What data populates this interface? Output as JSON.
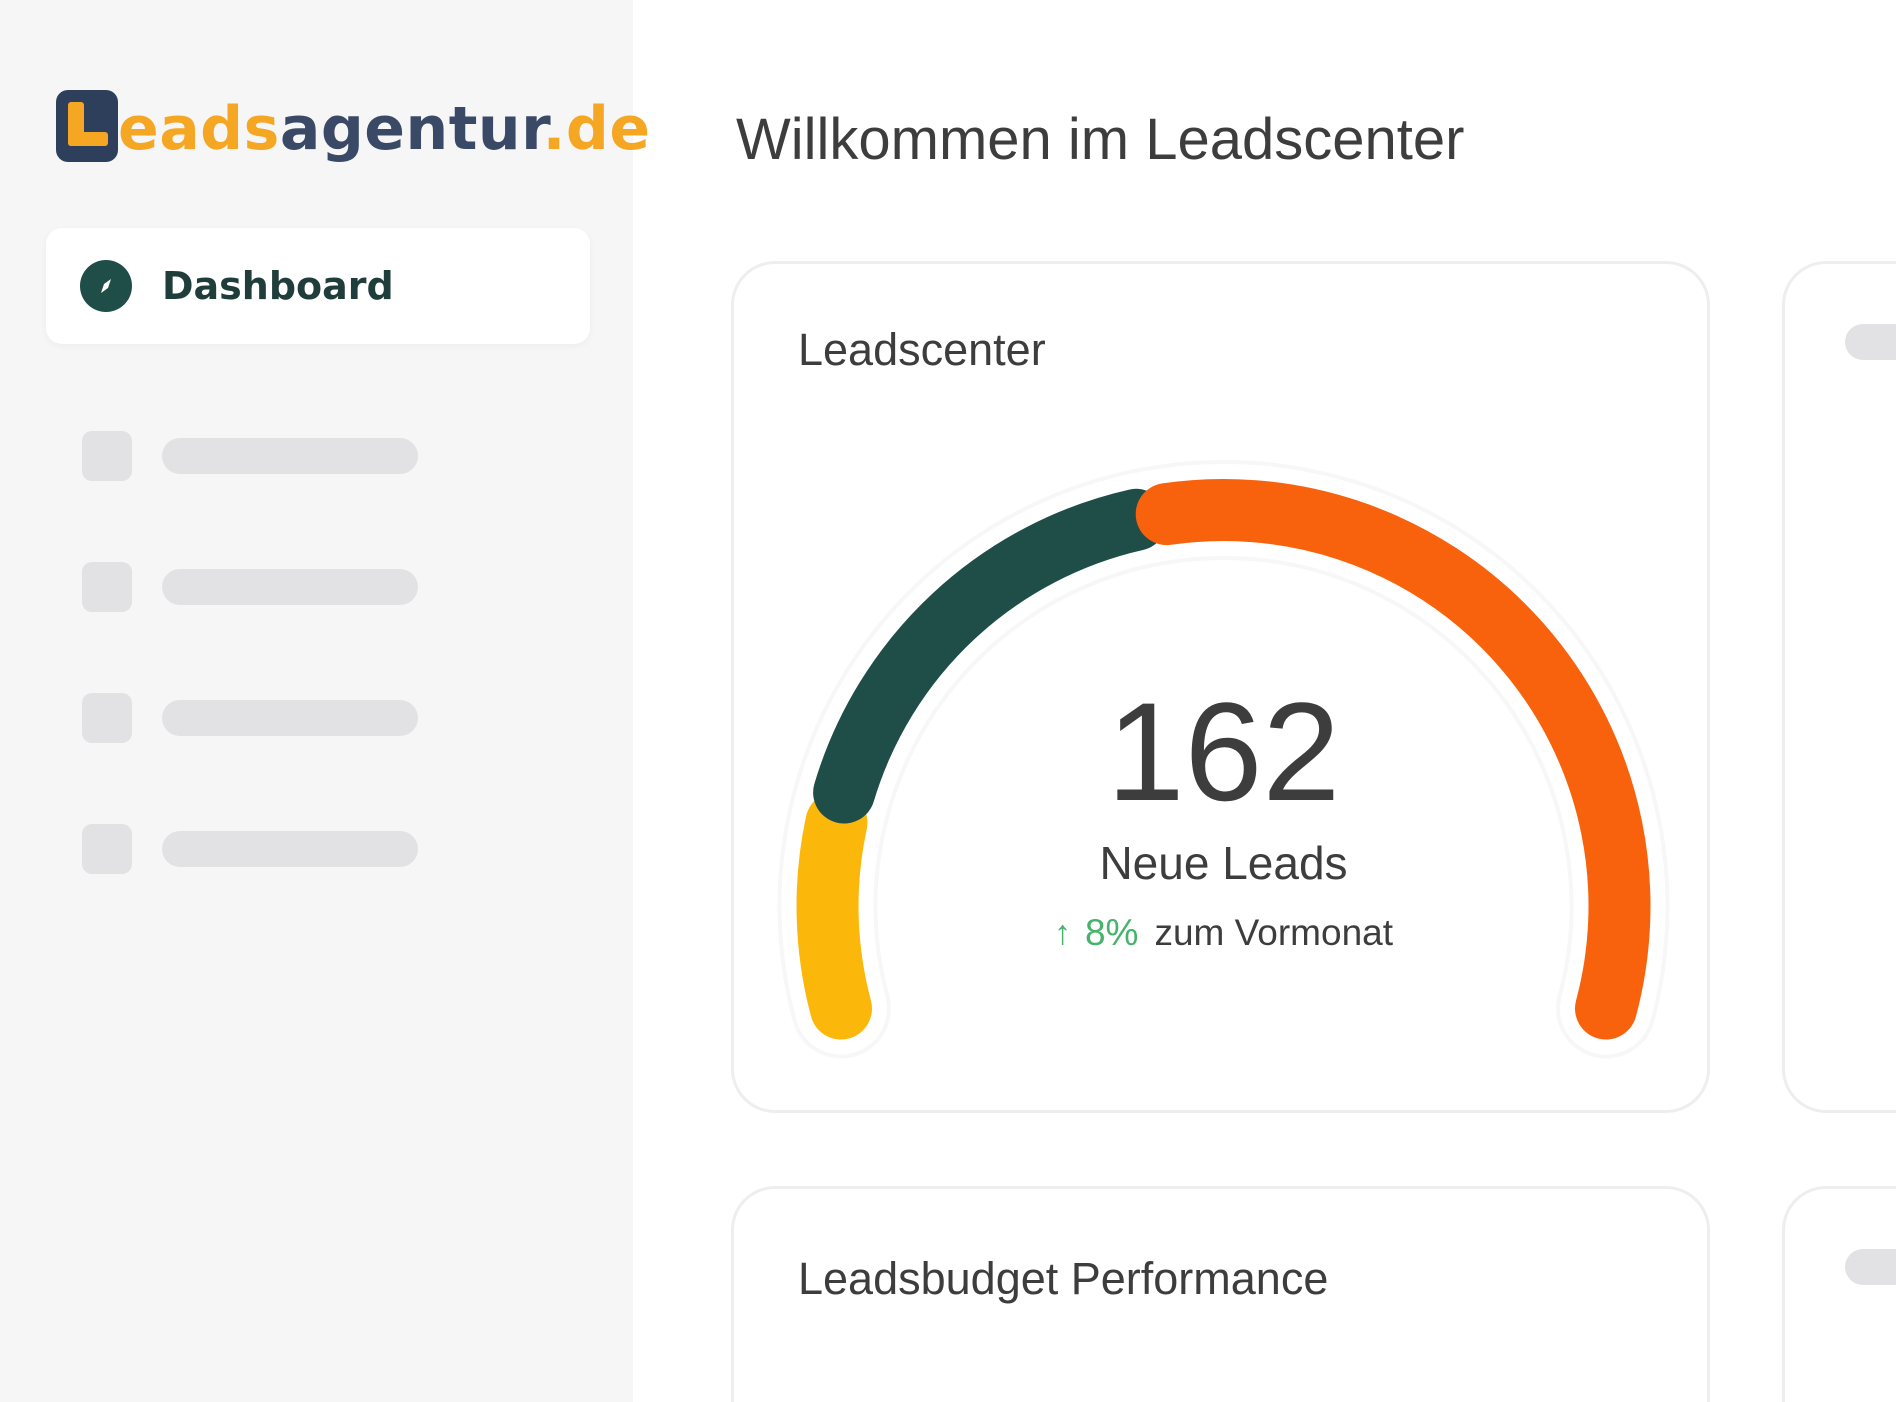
{
  "sidebar": {
    "logo": {
      "text_part1": "L",
      "text_part2": "eads",
      "text_part3": "agentur",
      "text_part4": ".de",
      "mark_icon": "logo-l-mark",
      "colors": {
        "orange": "#f5a623",
        "navy": "#3a4a66"
      }
    },
    "active_item": {
      "label": "Dashboard",
      "icon": "compass-icon"
    },
    "skeleton_items": [
      {
        "icon": "placeholder-square"
      },
      {
        "icon": "placeholder-square"
      },
      {
        "icon": "placeholder-square"
      },
      {
        "icon": "placeholder-square"
      }
    ]
  },
  "main": {
    "title": "Willkommen im Leadscenter",
    "cards": {
      "leadscenter": {
        "title": "Leadscenter",
        "gauge": {
          "value": "162",
          "label": "Neue Leads",
          "trend_arrow": "↑",
          "trend_value": "8%",
          "trend_text": "zum Vormonat",
          "segments": [
            {
              "color": "#fbb80a",
              "share": 0.14
            },
            {
              "color": "#1f4d47",
              "share": 0.31
            },
            {
              "color": "#f8620d",
              "share": 0.55
            }
          ],
          "trend_color": "#45b36b"
        }
      },
      "budget": {
        "title": "Leadsbudget Performance"
      }
    }
  }
}
